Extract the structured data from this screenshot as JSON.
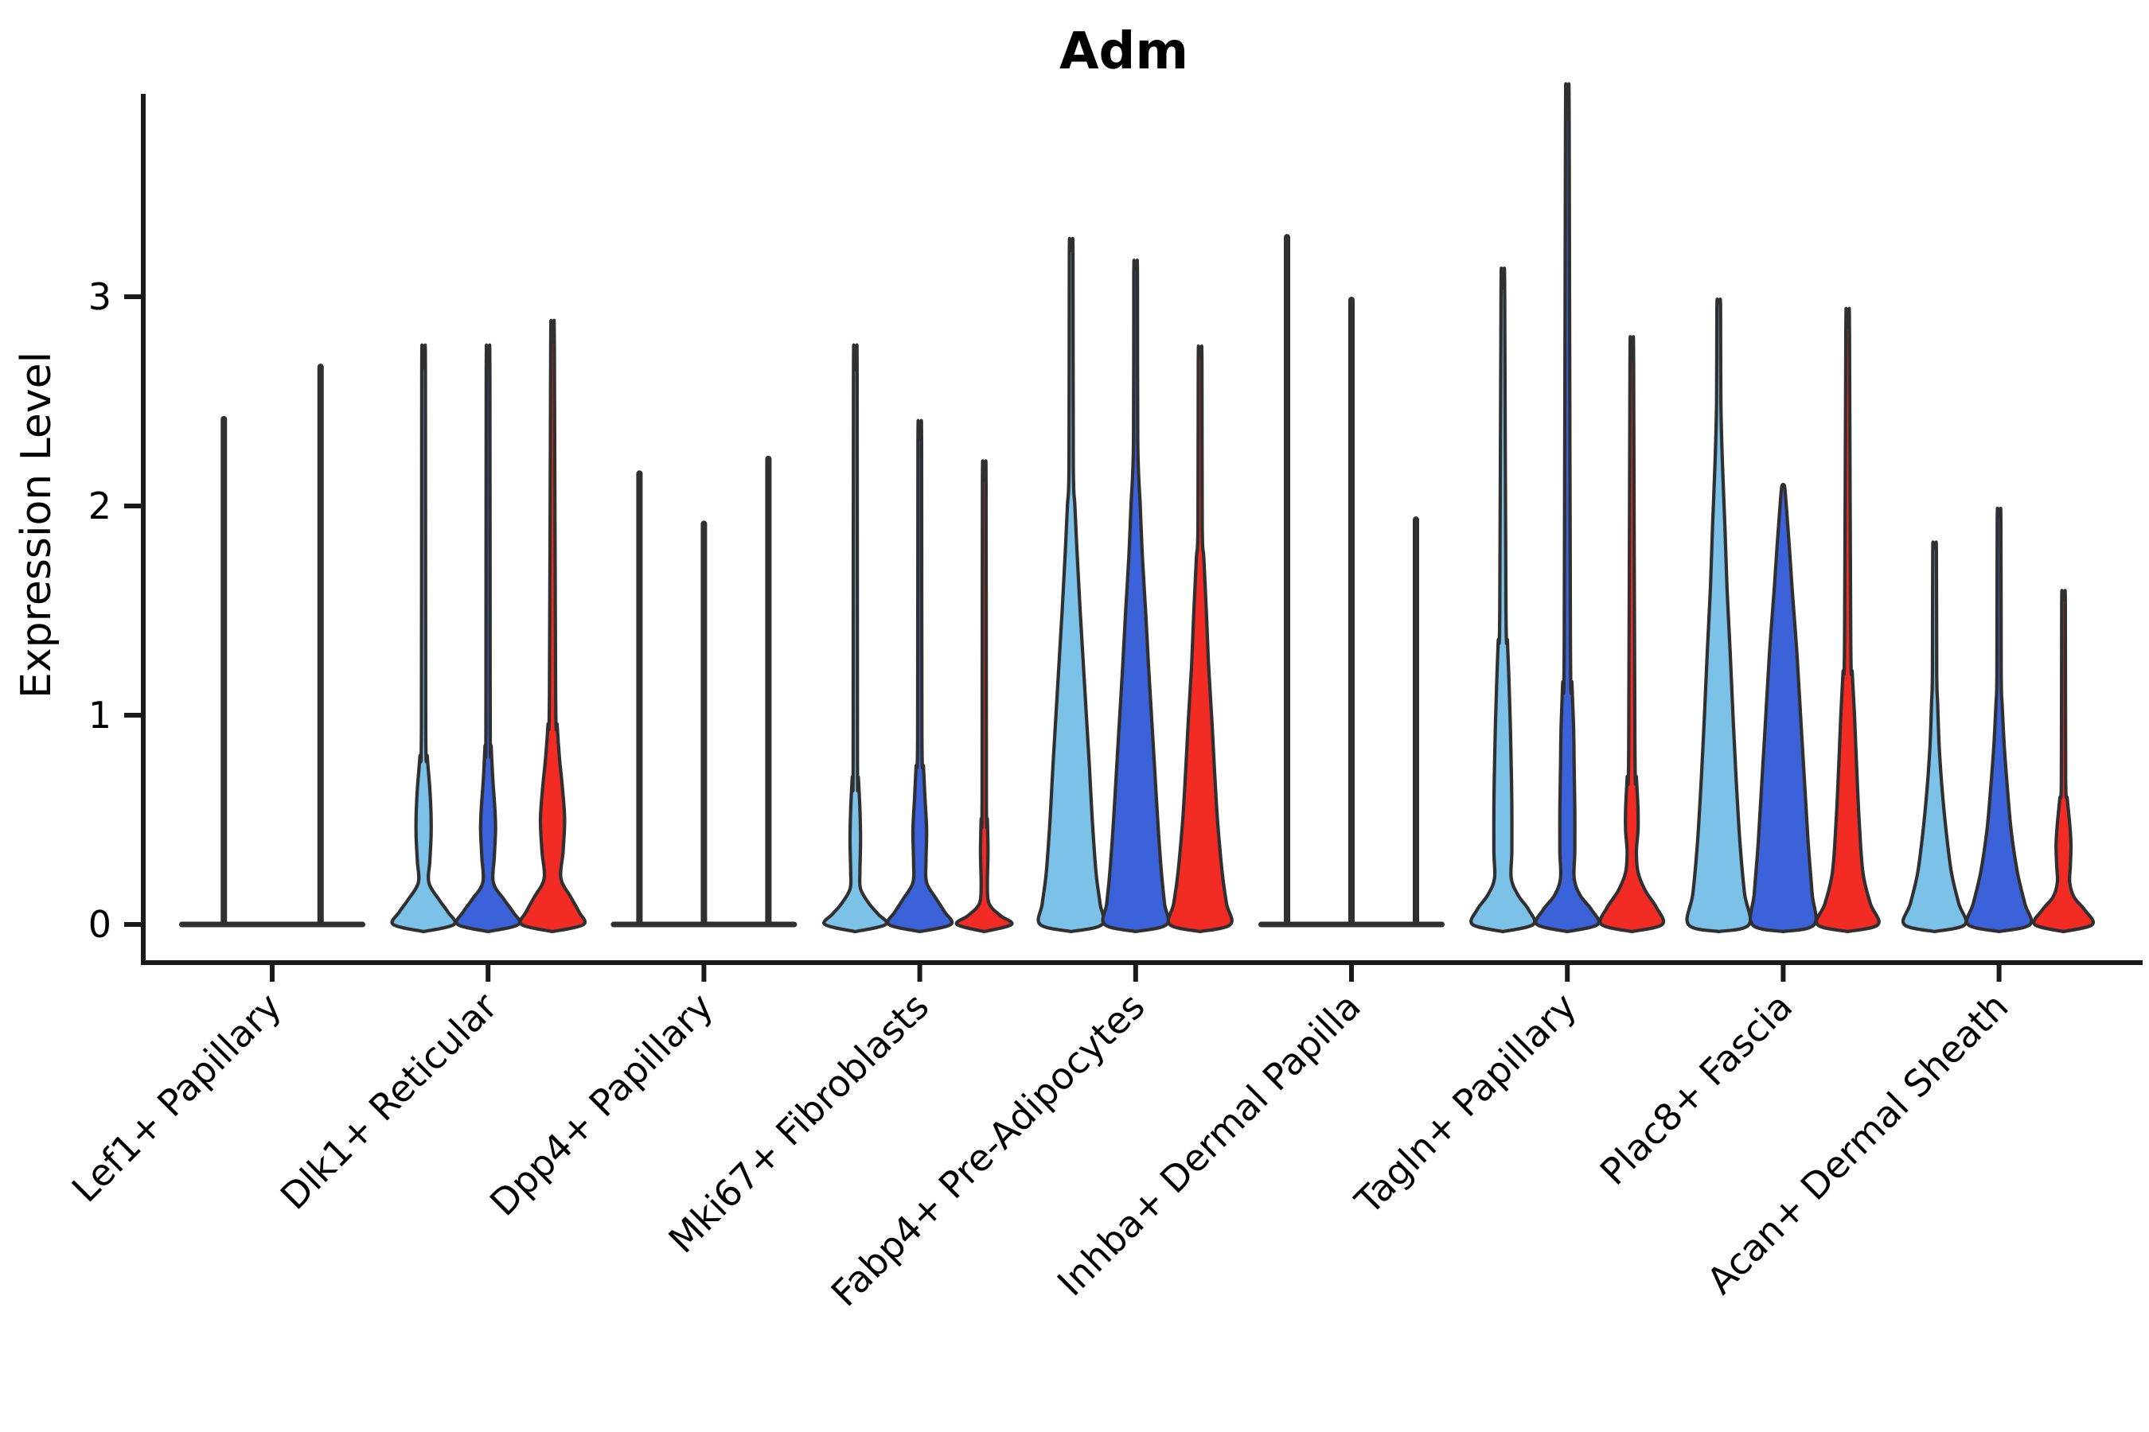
{
  "title": "Adm",
  "ylabel": "Expression Level",
  "background_color": "#ffffff",
  "chart_data": {
    "type": "violin",
    "title": "Adm",
    "xlabel": "",
    "ylabel": "Expression Level",
    "yticks": [
      0,
      1,
      2,
      3
    ],
    "ytick_labels": [
      "0",
      "1",
      "2",
      "3"
    ],
    "ylim": [
      -0.18,
      4.0
    ],
    "grid": false,
    "legend_position": "none",
    "outline_color": "#303030",
    "axis_color": "#1a1a1a",
    "series_colors": {
      "light_blue": "#7CC1E8",
      "dark_blue": "#3B62D8",
      "red": "#F32B25"
    },
    "categories": [
      "Lef1+ Papillary",
      "Dlk1+ Reticular",
      "Dpp4+ Papillary",
      "Mki67+ Fibroblasts",
      "Fabp4+ Pre-Adipocytes",
      "Inhba+ Dermal Papilla",
      "Tagln+ Papillary",
      "Plac8+ Fascia",
      "Acan+ Dermal Sheath"
    ],
    "groups": [
      {
        "category": "Lef1+ Papillary",
        "violins": [
          {
            "color": "light_blue",
            "max": 2.43,
            "flat": true
          },
          {
            "color": "dark_blue",
            "max": 2.68,
            "flat": true
          }
        ]
      },
      {
        "category": "Dlk1+ Reticular",
        "violins": [
          {
            "color": "light_blue",
            "max": 2.66,
            "flat": false,
            "profile": [
              [
                0,
                0.98
              ],
              [
                0.06,
                0.78
              ],
              [
                0.12,
                0.49
              ],
              [
                0.2,
                0.17
              ],
              [
                0.3,
                0.2
              ],
              [
                0.42,
                0.24
              ],
              [
                0.52,
                0.24
              ],
              [
                0.65,
                0.2
              ],
              [
                0.8,
                0.12
              ],
              [
                0.95,
                0.07
              ]
            ]
          },
          {
            "color": "dark_blue",
            "max": 2.66,
            "flat": false,
            "profile": [
              [
                0,
                0.98
              ],
              [
                0.06,
                0.8
              ],
              [
                0.12,
                0.51
              ],
              [
                0.2,
                0.17
              ],
              [
                0.32,
                0.2
              ],
              [
                0.45,
                0.24
              ],
              [
                0.55,
                0.22
              ],
              [
                0.7,
                0.15
              ],
              [
                0.85,
                0.1
              ],
              [
                0.95,
                0.07
              ]
            ]
          },
          {
            "color": "red",
            "max": 2.78,
            "flat": false,
            "profile": [
              [
                0,
                1.0
              ],
              [
                0.06,
                0.85
              ],
              [
                0.13,
                0.59
              ],
              [
                0.22,
                0.27
              ],
              [
                0.35,
                0.34
              ],
              [
                0.5,
                0.39
              ],
              [
                0.65,
                0.32
              ],
              [
                0.8,
                0.22
              ],
              [
                0.95,
                0.15
              ],
              [
                1.1,
                0.1
              ]
            ]
          }
        ]
      },
      {
        "category": "Dpp4+ Papillary",
        "violins": [
          {
            "color": "light_blue",
            "max": 2.17,
            "flat": true
          },
          {
            "color": "dark_blue",
            "max": 1.93,
            "flat": true
          },
          {
            "color": "red",
            "max": 2.24,
            "flat": true
          }
        ]
      },
      {
        "category": "Mki67+ Fibroblasts",
        "violins": [
          {
            "color": "light_blue",
            "max": 2.65,
            "flat": false,
            "profile": [
              [
                0,
                0.98
              ],
              [
                0.05,
                0.73
              ],
              [
                0.1,
                0.44
              ],
              [
                0.17,
                0.17
              ],
              [
                0.25,
                0.15
              ],
              [
                0.4,
                0.17
              ],
              [
                0.55,
                0.15
              ],
              [
                0.7,
                0.1
              ],
              [
                0.8,
                0.07
              ]
            ]
          },
          {
            "color": "dark_blue",
            "max": 2.32,
            "flat": false,
            "profile": [
              [
                0,
                1.0
              ],
              [
                0.06,
                0.8
              ],
              [
                0.12,
                0.54
              ],
              [
                0.2,
                0.22
              ],
              [
                0.3,
                0.2
              ],
              [
                0.45,
                0.22
              ],
              [
                0.6,
                0.17
              ],
              [
                0.75,
                0.12
              ],
              [
                0.9,
                0.07
              ]
            ]
          },
          {
            "color": "red",
            "max": 2.12,
            "flat": false,
            "profile": [
              [
                0,
                0.88
              ],
              [
                0.04,
                0.54
              ],
              [
                0.08,
                0.24
              ],
              [
                0.12,
                0.12
              ],
              [
                0.2,
                0.1
              ],
              [
                0.35,
                0.12
              ],
              [
                0.5,
                0.1
              ],
              [
                0.6,
                0.07
              ]
            ]
          }
        ]
      },
      {
        "category": "Fabp4+ Pre-Adipocytes",
        "violins": [
          {
            "color": "light_blue",
            "max": 3.22,
            "flat": false,
            "profile": [
              [
                0,
                1.0
              ],
              [
                0.1,
                0.93
              ],
              [
                0.25,
                0.8
              ],
              [
                0.5,
                0.68
              ],
              [
                0.75,
                0.59
              ],
              [
                1.0,
                0.49
              ],
              [
                1.25,
                0.39
              ],
              [
                1.5,
                0.29
              ],
              [
                1.75,
                0.2
              ],
              [
                2.0,
                0.12
              ],
              [
                2.2,
                0.07
              ]
            ]
          },
          {
            "color": "dark_blue",
            "max": 3.13,
            "flat": false,
            "profile": [
              [
                0,
                1.0
              ],
              [
                0.1,
                0.93
              ],
              [
                0.25,
                0.83
              ],
              [
                0.5,
                0.71
              ],
              [
                0.75,
                0.61
              ],
              [
                1.0,
                0.51
              ],
              [
                1.25,
                0.41
              ],
              [
                1.5,
                0.32
              ],
              [
                1.75,
                0.22
              ],
              [
                2.0,
                0.15
              ],
              [
                2.3,
                0.07
              ]
            ]
          },
          {
            "color": "red",
            "max": 2.72,
            "flat": false,
            "profile": [
              [
                0,
                0.98
              ],
              [
                0.1,
                0.85
              ],
              [
                0.25,
                0.71
              ],
              [
                0.5,
                0.56
              ],
              [
                0.75,
                0.46
              ],
              [
                1.0,
                0.37
              ],
              [
                1.25,
                0.27
              ],
              [
                1.5,
                0.2
              ],
              [
                1.75,
                0.12
              ],
              [
                1.9,
                0.07
              ]
            ]
          }
        ]
      },
      {
        "category": "Inhba+ Dermal Papilla",
        "violins": [
          {
            "color": "light_blue",
            "max": 3.3,
            "flat": true
          },
          {
            "color": "dark_blue",
            "max": 3.0,
            "flat": true
          },
          {
            "color": "red",
            "max": 1.95,
            "flat": true
          }
        ]
      },
      {
        "category": "Tagln+ Papillary",
        "violins": [
          {
            "color": "light_blue",
            "max": 3.04,
            "flat": false,
            "profile": [
              [
                0,
                0.98
              ],
              [
                0.07,
                0.83
              ],
              [
                0.14,
                0.49
              ],
              [
                0.22,
                0.27
              ],
              [
                0.35,
                0.29
              ],
              [
                0.55,
                0.29
              ],
              [
                0.75,
                0.27
              ],
              [
                0.95,
                0.24
              ],
              [
                1.15,
                0.2
              ],
              [
                1.35,
                0.15
              ],
              [
                1.5,
                0.1
              ]
            ]
          },
          {
            "color": "dark_blue",
            "max": 3.85,
            "flat": false,
            "profile": [
              [
                0,
                0.98
              ],
              [
                0.07,
                0.78
              ],
              [
                0.14,
                0.41
              ],
              [
                0.22,
                0.22
              ],
              [
                0.35,
                0.24
              ],
              [
                0.55,
                0.24
              ],
              [
                0.75,
                0.22
              ],
              [
                0.95,
                0.2
              ],
              [
                1.15,
                0.15
              ],
              [
                1.35,
                0.1
              ]
            ]
          },
          {
            "color": "red",
            "max": 2.69,
            "flat": false,
            "profile": [
              [
                0,
                0.98
              ],
              [
                0.08,
                0.8
              ],
              [
                0.16,
                0.44
              ],
              [
                0.25,
                0.2
              ],
              [
                0.35,
                0.15
              ],
              [
                0.45,
                0.2
              ],
              [
                0.55,
                0.2
              ],
              [
                0.7,
                0.15
              ],
              [
                0.85,
                0.1
              ]
            ]
          }
        ]
      },
      {
        "category": "Plac8+ Fascia",
        "violins": [
          {
            "color": "light_blue",
            "max": 2.97,
            "flat": false,
            "profile": [
              [
                0,
                0.98
              ],
              [
                0.15,
                0.83
              ],
              [
                0.4,
                0.68
              ],
              [
                0.7,
                0.56
              ],
              [
                1.0,
                0.46
              ],
              [
                1.3,
                0.37
              ],
              [
                1.6,
                0.27
              ],
              [
                1.9,
                0.2
              ],
              [
                2.2,
                0.12
              ],
              [
                2.5,
                0.07
              ]
            ]
          },
          {
            "color": "dark_blue",
            "max": 2.1,
            "flat": false,
            "profile": [
              [
                0,
                1.0
              ],
              [
                0.15,
                0.93
              ],
              [
                0.4,
                0.8
              ],
              [
                0.7,
                0.68
              ],
              [
                1.0,
                0.56
              ],
              [
                1.3,
                0.44
              ],
              [
                1.6,
                0.29
              ],
              [
                1.8,
                0.2
              ],
              [
                2.0,
                0.1
              ]
            ]
          },
          {
            "color": "red",
            "max": 2.85,
            "flat": false,
            "profile": [
              [
                0,
                0.98
              ],
              [
                0.1,
                0.73
              ],
              [
                0.25,
                0.49
              ],
              [
                0.5,
                0.37
              ],
              [
                0.75,
                0.29
              ],
              [
                1.0,
                0.22
              ],
              [
                1.2,
                0.15
              ],
              [
                1.35,
                0.1
              ]
            ]
          }
        ]
      },
      {
        "category": "Acan+ Dermal Sheath",
        "violins": [
          {
            "color": "light_blue",
            "max": 1.8,
            "flat": false,
            "profile": [
              [
                0,
                0.98
              ],
              [
                0.1,
                0.78
              ],
              [
                0.25,
                0.54
              ],
              [
                0.45,
                0.37
              ],
              [
                0.65,
                0.24
              ],
              [
                0.85,
                0.15
              ],
              [
                1.05,
                0.1
              ],
              [
                1.2,
                0.07
              ]
            ]
          },
          {
            "color": "dark_blue",
            "max": 1.95,
            "flat": false,
            "profile": [
              [
                0,
                1.0
              ],
              [
                0.1,
                0.83
              ],
              [
                0.25,
                0.59
              ],
              [
                0.45,
                0.39
              ],
              [
                0.65,
                0.27
              ],
              [
                0.85,
                0.17
              ],
              [
                1.05,
                0.1
              ],
              [
                1.2,
                0.07
              ]
            ]
          },
          {
            "color": "red",
            "max": 1.55,
            "flat": false,
            "profile": [
              [
                0,
                0.93
              ],
              [
                0.07,
                0.68
              ],
              [
                0.13,
                0.34
              ],
              [
                0.2,
                0.2
              ],
              [
                0.28,
                0.22
              ],
              [
                0.38,
                0.24
              ],
              [
                0.48,
                0.2
              ],
              [
                0.6,
                0.12
              ],
              [
                0.7,
                0.07
              ]
            ]
          }
        ]
      }
    ]
  }
}
